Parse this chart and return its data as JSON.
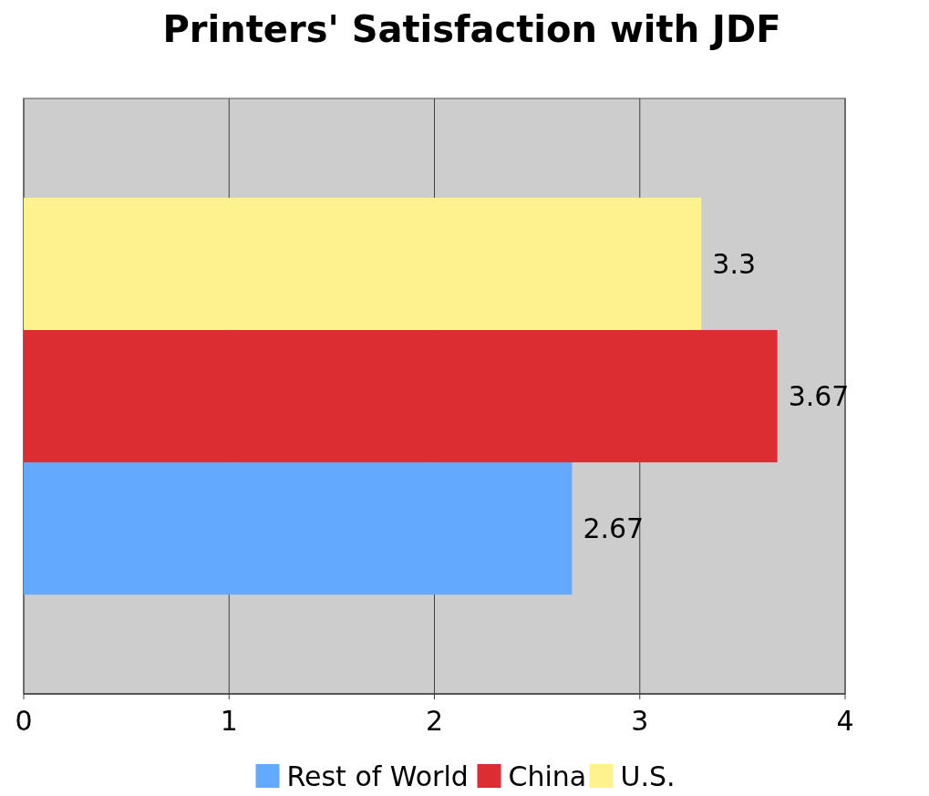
{
  "chart_data": {
    "type": "bar",
    "title": "Printers' Satisfaction with JDF",
    "orientation": "horizontal",
    "categories": [
      null
    ],
    "series": [
      {
        "name": "Rest of World",
        "color": "#63a9fe",
        "values": [
          2.67
        ]
      },
      {
        "name": "China",
        "color": "#dc2d32",
        "values": [
          3.67
        ]
      },
      {
        "name": "U.S.",
        "color": "#fef28e",
        "values": [
          3.3
        ]
      }
    ],
    "xlim": [
      0,
      4
    ],
    "xticks": [
      0,
      1,
      2,
      3,
      4
    ],
    "grid": "x",
    "legend": "bottom",
    "data_labels": true
  }
}
